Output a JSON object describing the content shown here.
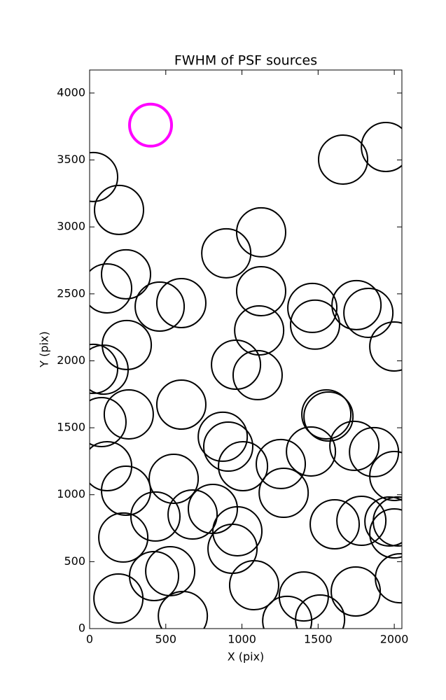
{
  "chart_data": {
    "type": "scatter",
    "title": "FWHM of PSF sources",
    "x_label": "X (pix)",
    "y_label": "Y (pix)",
    "xlim": [
      0,
      2050
    ],
    "ylim": [
      0,
      4172
    ],
    "xticks": [
      0,
      500,
      1000,
      1500,
      2000
    ],
    "yticks": [
      0,
      500,
      1000,
      1500,
      2000,
      2500,
      3000,
      3500,
      4000
    ],
    "series": [
      {
        "color": "#000000",
        "x": [
          23,
          193,
          1664,
          1945,
          1126,
          897,
          239,
          115,
          460,
          602,
          1126,
          1462,
          1752,
          1830,
          1480,
          1113,
          244,
          2000,
          92,
          23,
          961,
          1103,
          78,
          257,
          602,
          1554,
          1568,
          874,
          910,
          1007,
          1255,
          1453,
          1738,
          1867,
          115,
          2000,
          239,
          552,
          1274,
          432,
          676,
          809,
          970,
          938,
          1609,
          1784,
          1968,
          2000,
          2023,
          221,
          529,
          423,
          1080,
          1406,
          1747,
          2037,
          189,
          612,
          1297,
          1513
        ],
        "y": [
          3373,
          3127,
          3503,
          3597,
          2960,
          2803,
          2646,
          2541,
          2405,
          2431,
          2520,
          2395,
          2416,
          2358,
          2270,
          2227,
          2118,
          2107,
          1934,
          1940,
          1971,
          1893,
          1542,
          1600,
          1673,
          1600,
          1584,
          1433,
          1359,
          1213,
          1229,
          1323,
          1365,
          1318,
          1213,
          1140,
          1030,
          1119,
          1014,
          837,
          852,
          894,
          727,
          596,
          779,
          805,
          800,
          711,
          800,
          680,
          429,
          392,
          324,
          240,
          277,
          376,
          225,
          94,
          58,
          68
        ]
      },
      {
        "color": "#ff00ff",
        "x": [
          400
        ],
        "y": [
          3760
        ]
      }
    ]
  }
}
